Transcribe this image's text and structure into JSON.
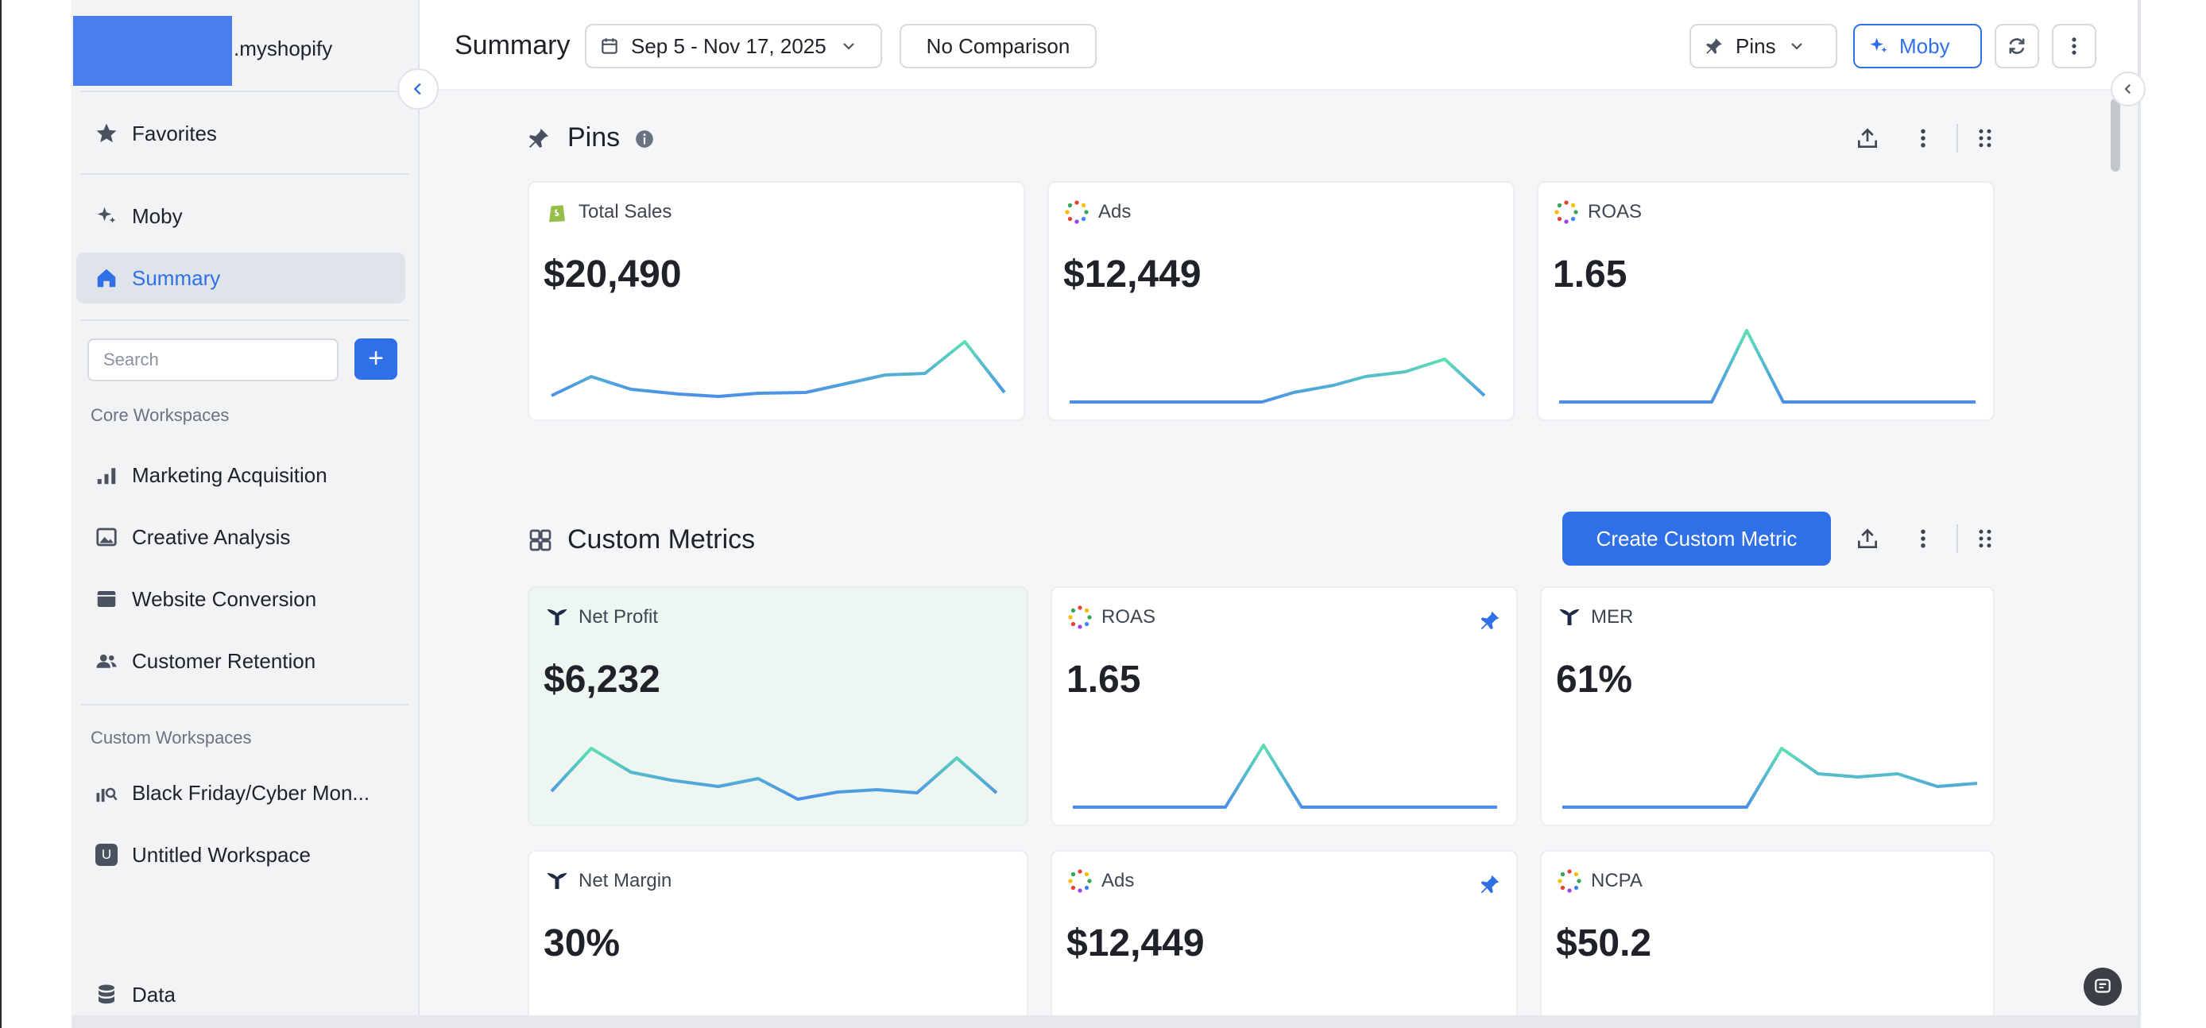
{
  "sidebar": {
    "store_name": ".myshopify",
    "favorites": "Favorites",
    "moby": "Moby",
    "summary": "Summary",
    "search_placeholder": "Search",
    "core_section": "Core Workspaces",
    "core_items": [
      "Marketing Acquisition",
      "Creative Analysis",
      "Website Conversion",
      "Customer Retention"
    ],
    "custom_section": "Custom Workspaces",
    "custom_items": [
      "Black Friday/Cyber Mon...",
      "Untitled Workspace"
    ],
    "untitled_badge": "U",
    "data": "Data"
  },
  "header": {
    "title": "Summary",
    "date_range": "Sep 5 - Nov 17, 2025",
    "comparison": "No Comparison",
    "pins": "Pins",
    "moby": "Moby"
  },
  "pins_section": {
    "title": "Pins",
    "cards": [
      {
        "label": "Total Sales",
        "value": "$20,490",
        "source": "shopify-icon"
      },
      {
        "label": "Ads",
        "value": "$12,449",
        "source": "ads-icon"
      },
      {
        "label": "ROAS",
        "value": "1.65",
        "source": "ads-icon"
      }
    ]
  },
  "custom_section": {
    "title": "Custom Metrics",
    "create_button": "Create Custom Metric",
    "cards": [
      {
        "label": "Net Profit",
        "value": "$6,232",
        "source": "triple-whale-icon",
        "pinned": false
      },
      {
        "label": "ROAS",
        "value": "1.65",
        "source": "ads-icon",
        "pinned": true
      },
      {
        "label": "MER",
        "value": "61%",
        "source": "triple-whale-icon",
        "pinned": false
      },
      {
        "label": "Net Margin",
        "value": "30%",
        "source": "triple-whale-icon",
        "pinned": false
      },
      {
        "label": "Ads",
        "value": "$12,449",
        "source": "ads-icon",
        "pinned": true
      },
      {
        "label": "NCPA",
        "value": "$50.2",
        "source": "ads-icon",
        "pinned": false
      }
    ]
  },
  "colors": {
    "accent": "#2f6fe8",
    "sparkline_start": "#4b8fe8",
    "sparkline_end": "#5ee0b4",
    "highlight_card": "#edf6f1"
  }
}
